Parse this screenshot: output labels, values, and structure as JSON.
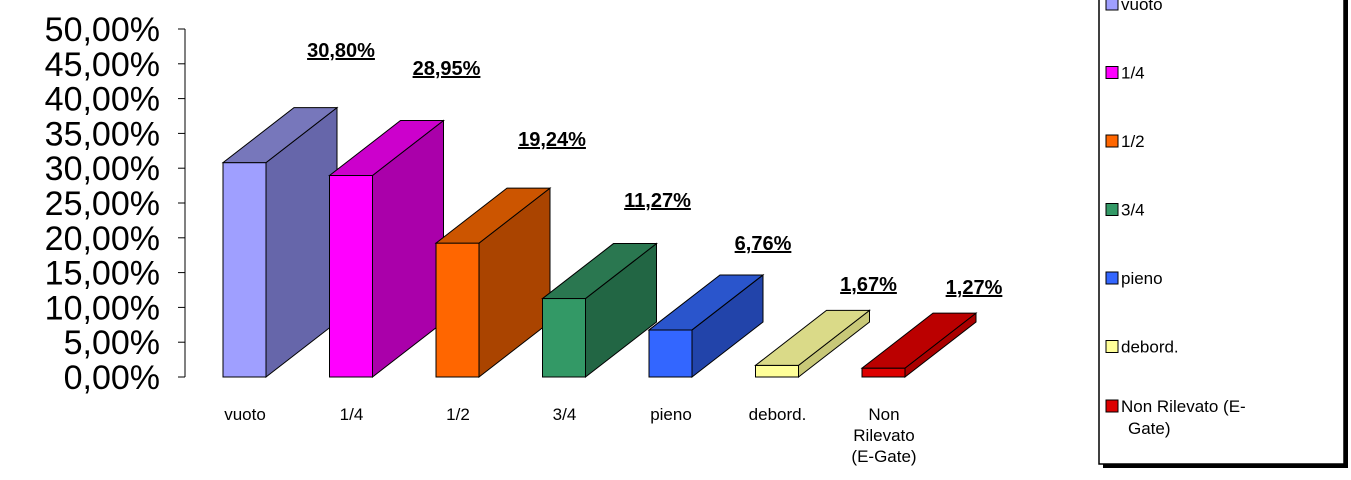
{
  "chart_data": {
    "type": "bar",
    "style": "3d",
    "categories": [
      "vuoto",
      "1/4",
      "1/2",
      "3/4",
      "pieno",
      "debord.",
      "Non Rilevato (E-Gate)"
    ],
    "category_tick_labels": [
      [
        "vuoto"
      ],
      [
        "1/4"
      ],
      [
        "1/2"
      ],
      [
        "3/4"
      ],
      [
        "pieno"
      ],
      [
        "debord."
      ],
      [
        "Non",
        "Rilevato",
        "(E-Gate)"
      ]
    ],
    "values": [
      30.8,
      28.95,
      19.24,
      11.27,
      6.76,
      1.67,
      1.27
    ],
    "data_labels": [
      "30,80%",
      "28,95%",
      "19,24%",
      "11,27%",
      "6,76%",
      "1,67%",
      "1,27%"
    ],
    "colors": [
      "#9f9fff",
      "#ff00ff",
      "#ff6600",
      "#339966",
      "#3366ff",
      "#ffff99",
      "#dd0000"
    ],
    "side_colors": [
      "#6666aa",
      "#aa00aa",
      "#aa4400",
      "#226644",
      "#2244aa",
      "#c8c878",
      "#aa0000"
    ],
    "top_colors": [
      "#7777bb",
      "#cc00cc",
      "#cc5500",
      "#2a7750",
      "#2a55cc",
      "#dada88",
      "#bb0000"
    ],
    "y_ticks": [
      "0,00%",
      "5,00%",
      "10,00%",
      "15,00%",
      "20,00%",
      "25,00%",
      "30,00%",
      "35,00%",
      "40,00%",
      "45,00%",
      "50,00%"
    ],
    "ylim": [
      0,
      50
    ],
    "grid": false,
    "legend": {
      "position": "right",
      "entries": [
        "vuoto",
        "1/4",
        "1/2",
        "3/4",
        "pieno",
        "debord.",
        "Non Rilevato (E-Gate)"
      ],
      "entry_lines": [
        [
          "vuoto"
        ],
        [
          "1/4"
        ],
        [
          "1/2"
        ],
        [
          "3/4"
        ],
        [
          "pieno"
        ],
        [
          "debord."
        ],
        [
          "Non Rilevato (E-",
          "Gate)"
        ]
      ]
    },
    "title": "",
    "xlabel": "",
    "ylabel": ""
  }
}
